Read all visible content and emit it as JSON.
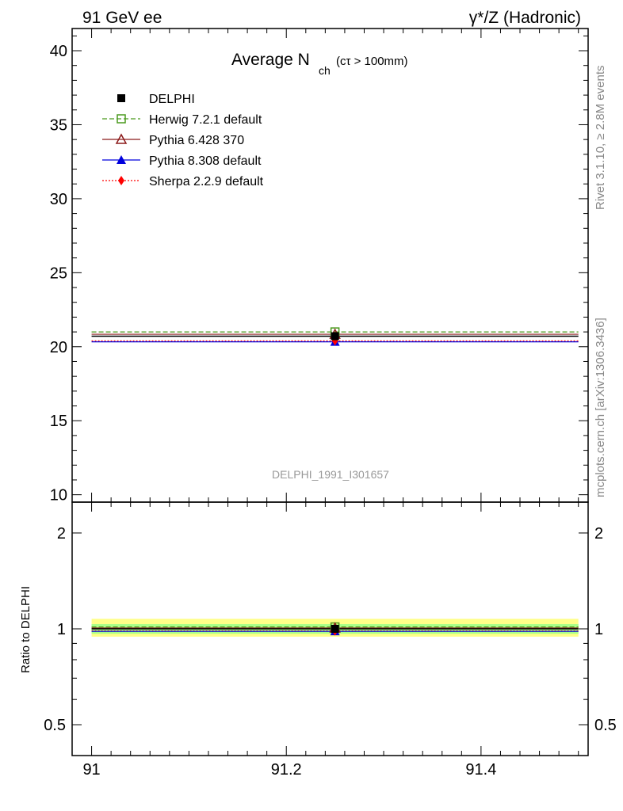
{
  "header": {
    "left": "91 GeV ee",
    "right": "γ*/Z (Hadronic)"
  },
  "side_labels": {
    "rivet": "Rivet 3.1.10, ≥ 2.8M events",
    "mcplots": "mcplots.cern.ch [arXiv:1306.3436]"
  },
  "analysis_id": "DELPHI_1991_I301657",
  "chart_data": [
    {
      "type": "scatter",
      "title_main": "Average N",
      "title_sub": "ch",
      "title_cut": "(cτ > 100mm)",
      "xlim": [
        90.98,
        91.51
      ],
      "ylim": [
        9.5,
        41.5
      ],
      "xticks": [
        91,
        91.2,
        91.4
      ],
      "xtick_labels": [
        "91",
        "91.2",
        "91.4"
      ],
      "yticks": [
        10,
        15,
        20,
        25,
        30,
        35,
        40
      ],
      "ytick_labels": [
        "10",
        "15",
        "20",
        "25",
        "30",
        "35",
        "40"
      ],
      "x_range": [
        91.0,
        91.5
      ],
      "x_point": 91.25,
      "series": [
        {
          "name": "DELPHI",
          "y": 20.71,
          "err": 0.25,
          "color": "#000000",
          "marker": "filled-square",
          "dash": ""
        },
        {
          "name": "Herwig 7.2.1 default",
          "y": 21.0,
          "color": "#4a9a1e",
          "marker": "open-square",
          "dash": "6,3"
        },
        {
          "name": "Pythia 6.428 370",
          "y": 20.84,
          "color": "#8b1a1a",
          "marker": "open-triangle",
          "dash": ""
        },
        {
          "name": "Pythia 8.308 default",
          "y": 20.33,
          "color": "#0000dd",
          "marker": "filled-triangle",
          "dash": ""
        },
        {
          "name": "Sherpa 2.2.9 default",
          "y": 20.4,
          "color": "#ff0000",
          "marker": "filled-diamond",
          "dash": "2,2"
        }
      ]
    },
    {
      "type": "scatter",
      "ylabel": "Ratio to DELPHI",
      "ylim": [
        0.4,
        2.5
      ],
      "log_y": true,
      "yticks": [
        0.5,
        1,
        2
      ],
      "ytick_labels": [
        "0.5",
        "1",
        "2"
      ],
      "bands": [
        {
          "level": "outer",
          "lo": 0.945,
          "hi": 1.075,
          "color": "#ffff88"
        },
        {
          "level": "inner",
          "lo": 0.965,
          "hi": 1.035,
          "color": "#aaff88"
        }
      ],
      "ratios": [
        {
          "name": "DELPHI",
          "y": 1.0
        },
        {
          "name": "Herwig 7.2.1 default",
          "y": 1.014
        },
        {
          "name": "Pythia 6.428 370",
          "y": 1.006
        },
        {
          "name": "Pythia 8.308 default",
          "y": 0.982
        },
        {
          "name": "Sherpa 2.2.9 default",
          "y": 0.985
        }
      ]
    }
  ]
}
